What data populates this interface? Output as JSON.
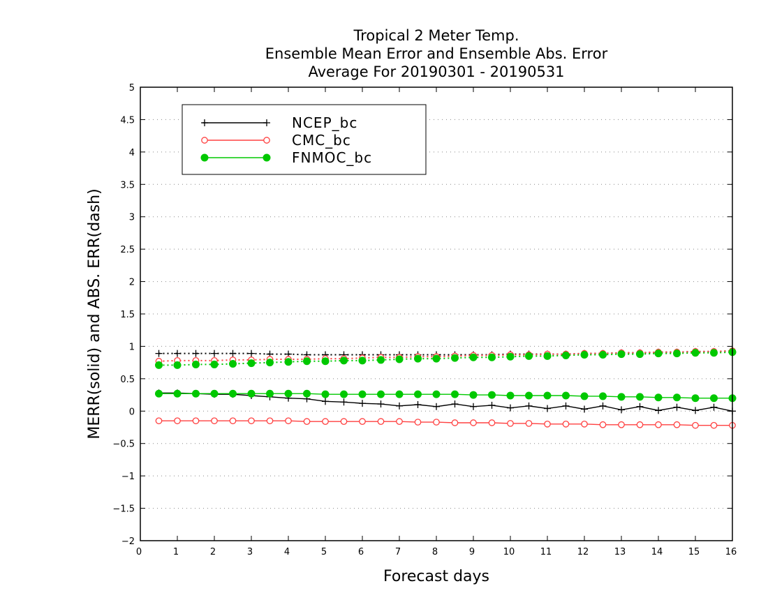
{
  "chart_data": {
    "type": "line",
    "title": [
      "Tropical 2 Meter Temp.",
      "Ensemble Mean Error and Ensemble Abs. Error",
      "Average For 20190301 - 20190531"
    ],
    "xlabel": "Forecast days",
    "ylabel": "MERR(solid) and ABS. ERR(dash)",
    "xlim": [
      0,
      16
    ],
    "ylim": [
      -2,
      5
    ],
    "xticks": [
      0,
      1,
      2,
      3,
      4,
      5,
      6,
      7,
      8,
      9,
      10,
      11,
      12,
      13,
      14,
      15,
      16
    ],
    "yticks": [
      -2,
      -1.5,
      -1,
      -0.5,
      0,
      0.5,
      1,
      1.5,
      2,
      2.5,
      3,
      3.5,
      4,
      4.5,
      5
    ],
    "grid": "horizontal dotted",
    "legend_position": "top-left",
    "x": [
      0.5,
      1,
      1.5,
      2,
      2.5,
      3,
      3.5,
      4,
      4.5,
      5,
      5.5,
      6,
      6.5,
      7,
      7.5,
      8,
      8.5,
      9,
      9.5,
      10,
      10.5,
      11,
      11.5,
      12,
      12.5,
      13,
      13.5,
      14,
      14.5,
      15,
      15.5,
      16
    ],
    "series": [
      {
        "name": "NCEP_bc",
        "color": "#000000",
        "marker": "plus",
        "merr": [
          0.28,
          0.28,
          0.27,
          0.26,
          0.26,
          0.24,
          0.22,
          0.2,
          0.19,
          0.15,
          0.14,
          0.12,
          0.11,
          0.08,
          0.1,
          0.07,
          0.11,
          0.07,
          0.09,
          0.05,
          0.08,
          0.04,
          0.08,
          0.03,
          0.08,
          0.02,
          0.07,
          0.01,
          0.06,
          0.01,
          0.06,
          0.0
        ],
        "abs_err": [
          0.89,
          0.89,
          0.89,
          0.89,
          0.89,
          0.89,
          0.88,
          0.88,
          0.87,
          0.87,
          0.87,
          0.87,
          0.87,
          0.87,
          0.87,
          0.87,
          0.87,
          0.87,
          0.87,
          0.88,
          0.88,
          0.88,
          0.88,
          0.89,
          0.89,
          0.9,
          0.9,
          0.91,
          0.91,
          0.92,
          0.92,
          0.93
        ]
      },
      {
        "name": "CMC_bc",
        "color": "#ff4040",
        "marker": "open-circle",
        "merr": [
          -0.15,
          -0.15,
          -0.15,
          -0.15,
          -0.15,
          -0.15,
          -0.15,
          -0.15,
          -0.16,
          -0.16,
          -0.16,
          -0.16,
          -0.16,
          -0.16,
          -0.17,
          -0.17,
          -0.18,
          -0.18,
          -0.18,
          -0.19,
          -0.19,
          -0.2,
          -0.2,
          -0.2,
          -0.21,
          -0.21,
          -0.21,
          -0.21,
          -0.21,
          -0.22,
          -0.22,
          -0.22
        ],
        "abs_err": [
          0.77,
          0.78,
          0.78,
          0.78,
          0.79,
          0.79,
          0.8,
          0.8,
          0.8,
          0.81,
          0.81,
          0.82,
          0.83,
          0.83,
          0.84,
          0.84,
          0.85,
          0.86,
          0.86,
          0.87,
          0.87,
          0.88,
          0.88,
          0.89,
          0.89,
          0.9,
          0.9,
          0.91,
          0.91,
          0.92,
          0.92,
          0.93
        ]
      },
      {
        "name": "FNMOC_bc",
        "color": "#00c800",
        "marker": "filled-circle",
        "merr": [
          0.27,
          0.27,
          0.27,
          0.27,
          0.27,
          0.27,
          0.27,
          0.27,
          0.27,
          0.26,
          0.26,
          0.26,
          0.26,
          0.26,
          0.26,
          0.26,
          0.26,
          0.25,
          0.25,
          0.24,
          0.24,
          0.24,
          0.24,
          0.23,
          0.23,
          0.22,
          0.22,
          0.21,
          0.21,
          0.2,
          0.2,
          0.2
        ],
        "abs_err": [
          0.71,
          0.71,
          0.72,
          0.72,
          0.73,
          0.74,
          0.75,
          0.76,
          0.77,
          0.77,
          0.78,
          0.78,
          0.79,
          0.8,
          0.81,
          0.81,
          0.82,
          0.83,
          0.83,
          0.84,
          0.85,
          0.85,
          0.86,
          0.87,
          0.87,
          0.88,
          0.88,
          0.89,
          0.89,
          0.9,
          0.9,
          0.91
        ]
      }
    ]
  }
}
